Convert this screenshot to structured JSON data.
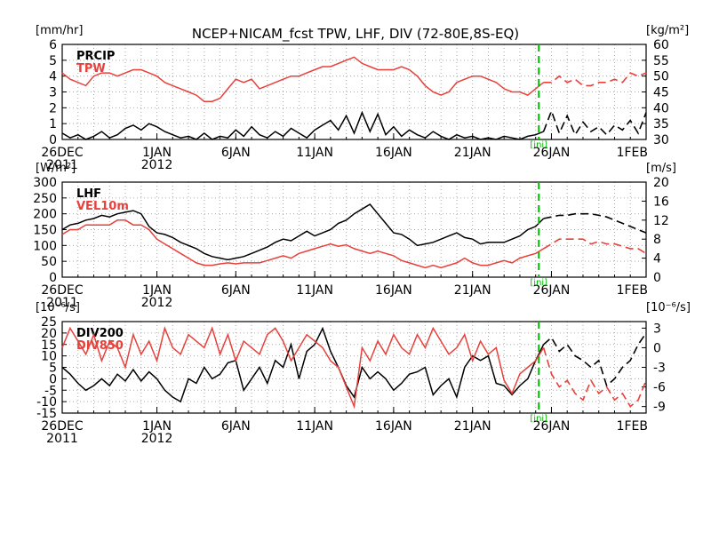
{
  "title": "NCEP+NICAM_fcst TPW, LHF, DIV (72-80E,8S-EQ)",
  "colors": {
    "black": "#000000",
    "red": "#e8403a",
    "marker": "#00bb00",
    "grid": "#aaaaaa"
  },
  "x_ticks": [
    {
      "label": "26DEC",
      "sub": "2011",
      "day": 0
    },
    {
      "label": "1JAN",
      "sub": "2012",
      "day": 6
    },
    {
      "label": "6JAN",
      "sub": "",
      "day": 11
    },
    {
      "label": "11JAN",
      "sub": "",
      "day": 16
    },
    {
      "label": "16JAN",
      "sub": "",
      "day": 21
    },
    {
      "label": "21JAN",
      "sub": "",
      "day": 26
    },
    {
      "label": "26JAN",
      "sub": "",
      "day": 31
    },
    {
      "label": "1FEB",
      "sub": "",
      "day": 37
    }
  ],
  "init_marker": {
    "day": 30.2,
    "label": "[ini]"
  },
  "chart_data": [
    {
      "type": "line",
      "left_unit": "[mm/hr]",
      "right_unit": "[kg/m²]",
      "ylim_left": [
        0,
        6
      ],
      "ylim_right": [
        30,
        60
      ],
      "left_ticks": [
        0,
        1,
        2,
        3,
        4,
        5,
        6
      ],
      "right_ticks": [
        30,
        35,
        40,
        45,
        50,
        55,
        60
      ],
      "xlim": [
        0,
        37
      ],
      "series": [
        {
          "name": "PRCIP",
          "axis": "left",
          "color": "black",
          "x": [
            0,
            0.5,
            1,
            1.5,
            2,
            2.5,
            3,
            3.5,
            4,
            4.5,
            5,
            5.5,
            6,
            6.5,
            7,
            7.5,
            8,
            8.5,
            9,
            9.5,
            10,
            10.5,
            11,
            11.5,
            12,
            12.5,
            13,
            13.5,
            14,
            14.5,
            15,
            15.5,
            16,
            16.5,
            17,
            17.5,
            18,
            18.5,
            19,
            19.5,
            20,
            20.5,
            21,
            21.5,
            22,
            22.5,
            23,
            23.5,
            24,
            24.5,
            25,
            25.5,
            26,
            26.5,
            27,
            27.5,
            28,
            28.5,
            29,
            29.5,
            30,
            30.5,
            31,
            31.5,
            32,
            32.5,
            33,
            33.5,
            34,
            34.5,
            35,
            35.5,
            36,
            36.5,
            37
          ],
          "y": [
            0.4,
            0.1,
            0.3,
            0.0,
            0.2,
            0.5,
            0.1,
            0.3,
            0.7,
            0.9,
            0.6,
            1.0,
            0.8,
            0.5,
            0.3,
            0.1,
            0.2,
            0.0,
            0.4,
            0.0,
            0.2,
            0.1,
            0.6,
            0.2,
            0.8,
            0.3,
            0.1,
            0.5,
            0.2,
            0.7,
            0.4,
            0.1,
            0.6,
            0.9,
            1.2,
            0.6,
            1.5,
            0.4,
            1.7,
            0.5,
            1.6,
            0.3,
            0.8,
            0.2,
            0.6,
            0.3,
            0.1,
            0.5,
            0.2,
            0.0,
            0.3,
            0.1,
            0.2,
            0.0,
            0.1,
            0.0,
            0.2,
            0.1,
            0.0,
            0.2,
            0.3,
            0.5,
            1.8,
            0.4,
            1.5,
            0.3,
            1.1,
            0.5,
            0.8,
            0.3,
            0.9,
            0.6,
            1.2,
            0.4,
            1.7
          ]
        },
        {
          "name": "TPW",
          "axis": "right",
          "color": "red",
          "x": [
            0,
            0.5,
            1,
            1.5,
            2,
            2.5,
            3,
            3.5,
            4,
            4.5,
            5,
            5.5,
            6,
            6.5,
            7,
            7.5,
            8,
            8.5,
            9,
            9.5,
            10,
            10.5,
            11,
            11.5,
            12,
            12.5,
            13,
            13.5,
            14,
            14.5,
            15,
            15.5,
            16,
            16.5,
            17,
            17.5,
            18,
            18.5,
            19,
            19.5,
            20,
            20.5,
            21,
            21.5,
            22,
            22.5,
            23,
            23.5,
            24,
            24.5,
            25,
            25.5,
            26,
            26.5,
            27,
            27.5,
            28,
            28.5,
            29,
            29.5,
            30,
            30.5,
            31,
            31.5,
            32,
            32.5,
            33,
            33.5,
            34,
            34.5,
            35,
            35.5,
            36,
            36.5,
            37
          ],
          "y": [
            51,
            49,
            48,
            47,
            50,
            51,
            51,
            50,
            51,
            52,
            52,
            51,
            50,
            48,
            47,
            46,
            45,
            44,
            42,
            42,
            43,
            46,
            49,
            48,
            49,
            46,
            47,
            48,
            49,
            50,
            50,
            51,
            52,
            53,
            53,
            54,
            55,
            56,
            54,
            53,
            52,
            52,
            52,
            53,
            52,
            50,
            47,
            45,
            44,
            45,
            48,
            49,
            50,
            50,
            49,
            48,
            46,
            45,
            45,
            44,
            46,
            48,
            48,
            50,
            48,
            49,
            47,
            47,
            48,
            48,
            49,
            48,
            51,
            50,
            51
          ]
        }
      ]
    },
    {
      "type": "line",
      "left_unit": "[W/m²]",
      "right_unit": "[m/s]",
      "ylim_left": [
        0,
        300
      ],
      "ylim_right": [
        0,
        20
      ],
      "left_ticks": [
        0,
        50,
        100,
        150,
        200,
        250,
        300
      ],
      "right_ticks": [
        0,
        4,
        8,
        12,
        16,
        20
      ],
      "xlim": [
        0,
        37
      ],
      "series": [
        {
          "name": "LHF",
          "axis": "left",
          "color": "black",
          "x": [
            0,
            0.5,
            1,
            1.5,
            2,
            2.5,
            3,
            3.5,
            4,
            4.5,
            5,
            5.5,
            6,
            6.5,
            7,
            7.5,
            8,
            8.5,
            9,
            9.5,
            10,
            10.5,
            11,
            11.5,
            12,
            12.5,
            13,
            13.5,
            14,
            14.5,
            15,
            15.5,
            16,
            16.5,
            17,
            17.5,
            18,
            18.5,
            19,
            19.5,
            20,
            20.5,
            21,
            21.5,
            22,
            22.5,
            23,
            23.5,
            24,
            24.5,
            25,
            25.5,
            26,
            26.5,
            27,
            27.5,
            28,
            28.5,
            29,
            29.5,
            30,
            30.5,
            31,
            31.5,
            32,
            32.5,
            33,
            33.5,
            34,
            34.5,
            35,
            35.5,
            36,
            36.5,
            37
          ],
          "y": [
            150,
            165,
            170,
            180,
            185,
            195,
            190,
            200,
            205,
            210,
            200,
            160,
            140,
            135,
            125,
            110,
            100,
            90,
            75,
            65,
            60,
            55,
            60,
            65,
            75,
            85,
            95,
            110,
            120,
            115,
            130,
            145,
            130,
            140,
            150,
            170,
            180,
            200,
            215,
            230,
            200,
            170,
            140,
            135,
            120,
            100,
            105,
            110,
            120,
            130,
            140,
            125,
            120,
            105,
            110,
            110,
            110,
            120,
            130,
            150,
            160,
            185,
            190,
            195,
            195,
            200,
            200,
            200,
            195,
            190,
            180,
            170,
            160,
            150,
            140
          ]
        },
        {
          "name": "VEL10m",
          "axis": "right",
          "color": "red",
          "x": [
            0,
            0.5,
            1,
            1.5,
            2,
            2.5,
            3,
            3.5,
            4,
            4.5,
            5,
            5.5,
            6,
            6.5,
            7,
            7.5,
            8,
            8.5,
            9,
            9.5,
            10,
            10.5,
            11,
            11.5,
            12,
            12.5,
            13,
            13.5,
            14,
            14.5,
            15,
            15.5,
            16,
            16.5,
            17,
            17.5,
            18,
            18.5,
            19,
            19.5,
            20,
            20.5,
            21,
            21.5,
            22,
            22.5,
            23,
            23.5,
            24,
            24.5,
            25,
            25.5,
            26,
            26.5,
            27,
            27.5,
            28,
            28.5,
            29,
            29.5,
            30,
            30.5,
            31,
            31.5,
            32,
            32.5,
            33,
            33.5,
            34,
            34.5,
            35,
            35.5,
            36,
            36.5,
            37
          ],
          "y": [
            9,
            10,
            10,
            11,
            11,
            11,
            11,
            12,
            12,
            11,
            11,
            10,
            8,
            7,
            6,
            5,
            4,
            3,
            2.5,
            2.5,
            2.8,
            3,
            2.8,
            3,
            3,
            3,
            3.5,
            4,
            4.5,
            4,
            5,
            5.5,
            6,
            6.5,
            7,
            6.5,
            6.8,
            6,
            5.5,
            5,
            5.5,
            5,
            4.5,
            3.5,
            3,
            2.5,
            2,
            2.5,
            2,
            2.5,
            3,
            4,
            3,
            2.5,
            2.5,
            3,
            3.5,
            3,
            4,
            4.5,
            5,
            6,
            7,
            8,
            8,
            8,
            8,
            7,
            7.5,
            7,
            7,
            6.5,
            6,
            6,
            5
          ]
        }
      ]
    },
    {
      "type": "line",
      "left_unit": "[10⁻⁶/s]",
      "right_unit": "[10⁻⁶/s]",
      "ylim_left": [
        -15,
        25
      ],
      "ylim_right": [
        -10,
        4
      ],
      "left_ticks": [
        -15,
        -10,
        -5,
        0,
        5,
        10,
        15,
        20,
        25
      ],
      "right_ticks": [
        -9,
        -6,
        -3,
        0,
        3
      ],
      "xlim": [
        0,
        37
      ],
      "series": [
        {
          "name": "DIV200",
          "axis": "left",
          "color": "black",
          "x": [
            0,
            0.5,
            1,
            1.5,
            2,
            2.5,
            3,
            3.5,
            4,
            4.5,
            5,
            5.5,
            6,
            6.5,
            7,
            7.5,
            8,
            8.5,
            9,
            9.5,
            10,
            10.5,
            11,
            11.5,
            12,
            12.5,
            13,
            13.5,
            14,
            14.5,
            15,
            15.5,
            16,
            16.5,
            17,
            17.5,
            18,
            18.5,
            19,
            19.5,
            20,
            20.5,
            21,
            21.5,
            22,
            22.5,
            23,
            23.5,
            24,
            24.5,
            25,
            25.5,
            26,
            26.5,
            27,
            27.5,
            28,
            28.5,
            29,
            29.5,
            30,
            30.5,
            31,
            31.5,
            32,
            32.5,
            33,
            33.5,
            34,
            34.5,
            35,
            35.5,
            36,
            36.5,
            37
          ],
          "y": [
            5,
            2,
            -2,
            -5,
            -3,
            0,
            -3,
            2,
            -1,
            4,
            -1,
            3,
            0,
            -5,
            -8,
            -10,
            0,
            -2,
            5,
            0,
            2,
            7,
            8,
            -5,
            0,
            5,
            -2,
            8,
            5,
            15,
            0,
            12,
            15,
            22,
            12,
            5,
            -3,
            -8,
            5,
            0,
            3,
            0,
            -5,
            -2,
            2,
            3,
            5,
            -7,
            -3,
            0,
            -8,
            5,
            10,
            8,
            10,
            -2,
            -3,
            -7,
            -3,
            0,
            8,
            15,
            18,
            12,
            15,
            10,
            8,
            5,
            8,
            -3,
            0,
            5,
            8,
            15,
            20
          ]
        },
        {
          "name": "DIV850",
          "axis": "right",
          "color": "red",
          "x": [
            0,
            0.5,
            1,
            1.5,
            2,
            2.5,
            3,
            3.5,
            4,
            4.5,
            5,
            5.5,
            6,
            6.5,
            7,
            7.5,
            8,
            8.5,
            9,
            9.5,
            10,
            10.5,
            11,
            11.5,
            12,
            12.5,
            13,
            13.5,
            14,
            14.5,
            15,
            15.5,
            16,
            16.5,
            17,
            17.5,
            18,
            18.5,
            19,
            19.5,
            20,
            20.5,
            21,
            21.5,
            22,
            22.5,
            23,
            23.5,
            24,
            24.5,
            25,
            25.5,
            26,
            26.5,
            27,
            27.5,
            28,
            28.5,
            29,
            29.5,
            30,
            30.5,
            31,
            31.5,
            32,
            32.5,
            33,
            33.5,
            34,
            34.5,
            35,
            35.5,
            36,
            36.5,
            37
          ],
          "y": [
            0,
            3,
            1,
            -1,
            2,
            -2,
            1,
            0,
            -3,
            2,
            -1,
            1,
            -2,
            3,
            0,
            -1,
            2,
            1,
            0,
            3,
            -1,
            2,
            -2,
            1,
            0,
            -1,
            2,
            3,
            1,
            -2,
            0,
            2,
            1,
            0,
            -2,
            -3,
            -6,
            -9,
            0,
            -2,
            1,
            -1,
            2,
            0,
            -1,
            2,
            0,
            3,
            1,
            -1,
            0,
            2,
            -2,
            1,
            -1,
            0,
            -5,
            -7,
            -4,
            -3,
            -2,
            0,
            -4,
            -6,
            -5,
            -7,
            -8,
            -5,
            -7,
            -6,
            -8,
            -7,
            -9,
            -8,
            -5
          ]
        }
      ]
    }
  ]
}
